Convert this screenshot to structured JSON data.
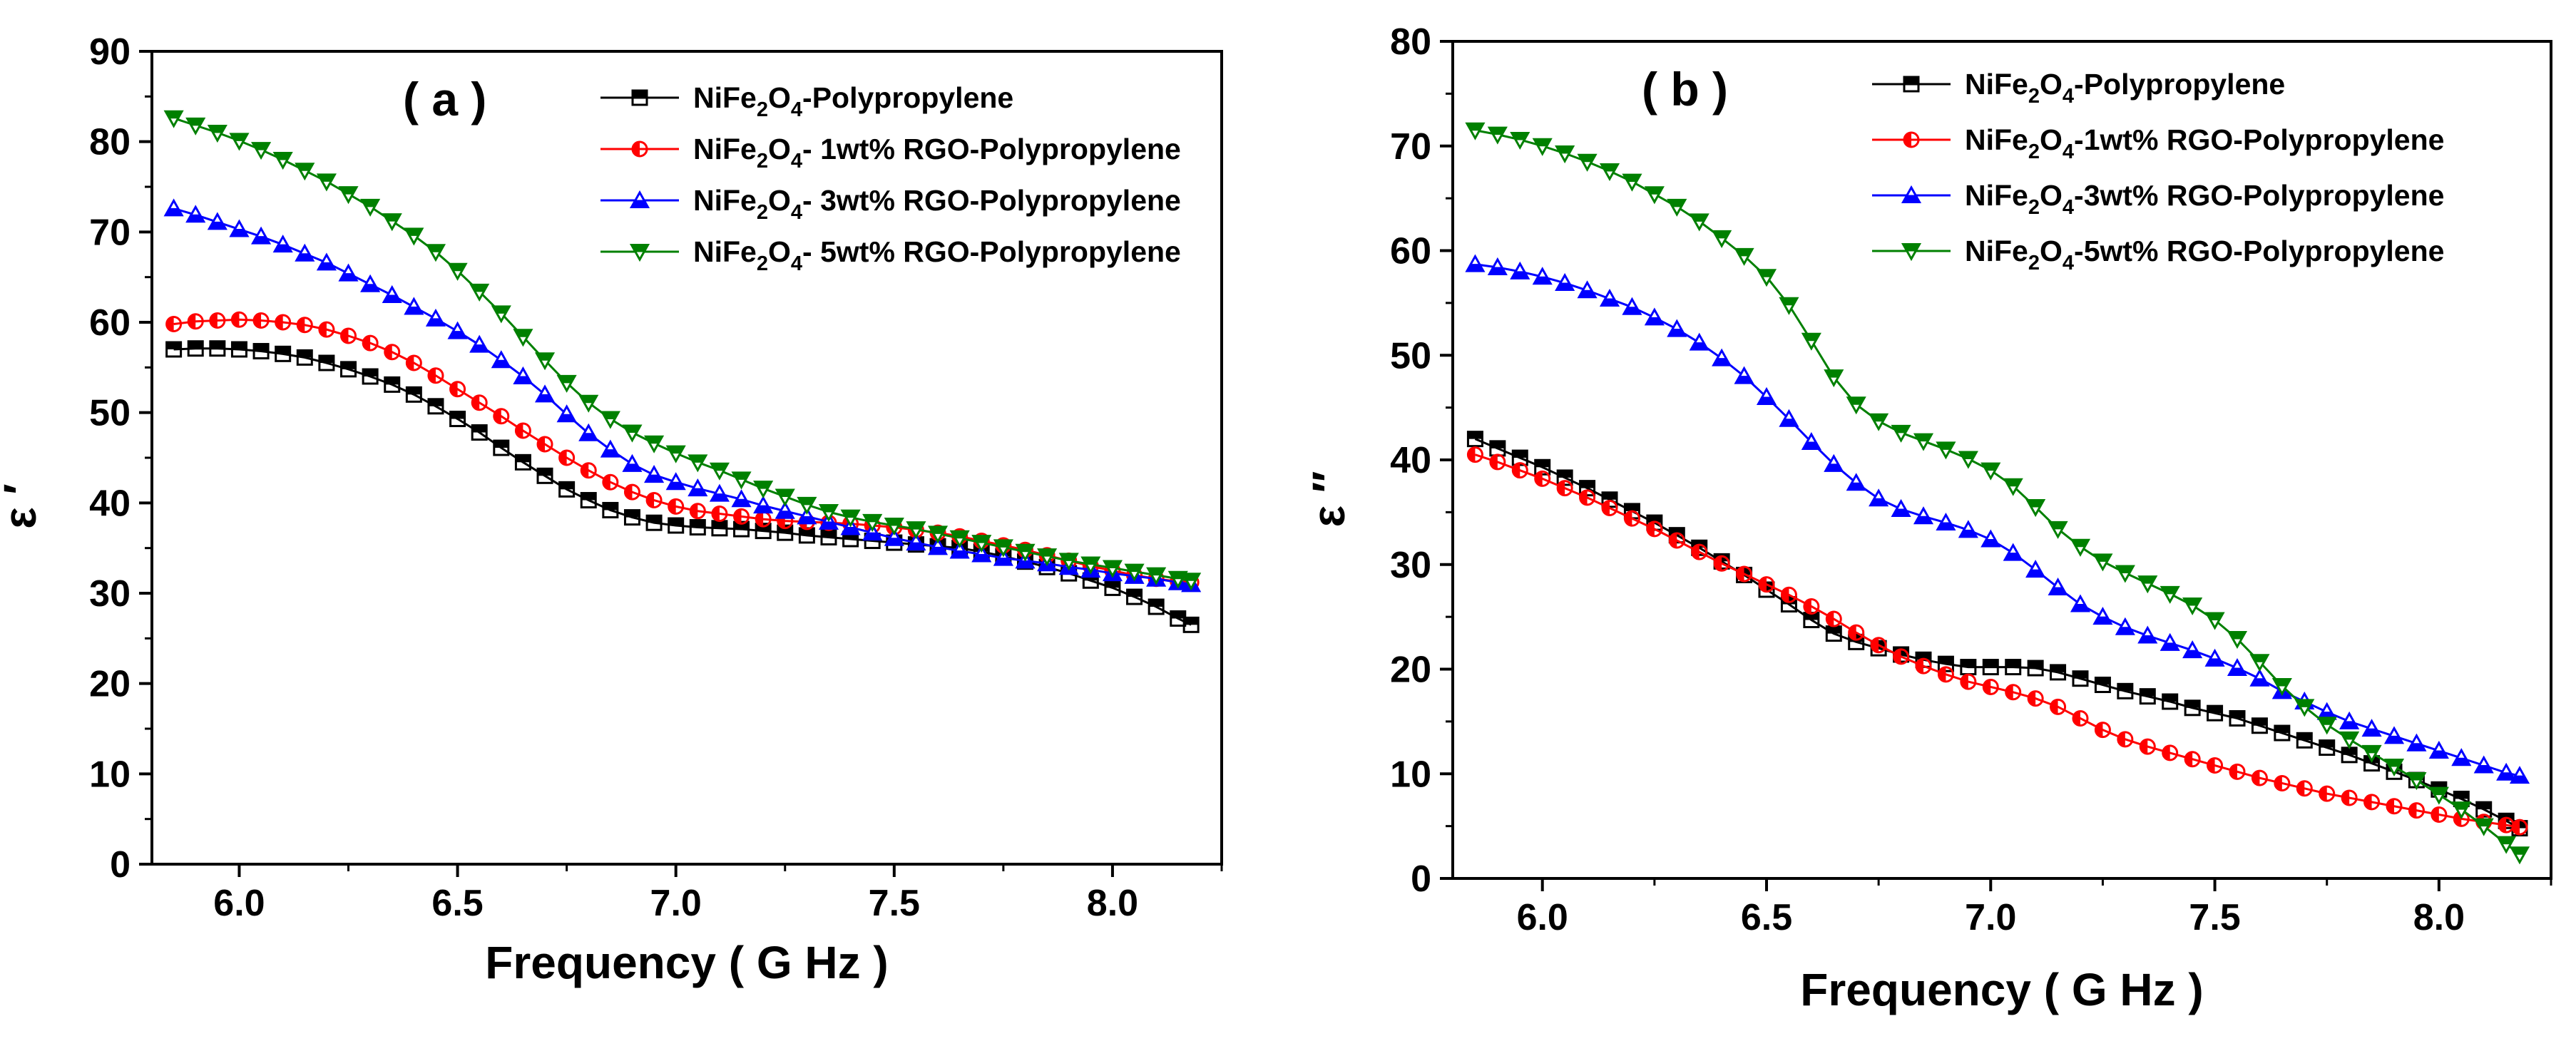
{
  "chart_data": [
    {
      "type": "scatter",
      "panel": "( a )",
      "title": "",
      "xlabel": "Frequency ( G Hz )",
      "ylabel": "ε ′",
      "xlim": [
        5.8,
        8.25
      ],
      "ylim": [
        0,
        90
      ],
      "xticks": [
        6.0,
        6.5,
        7.0,
        7.5,
        8.0
      ],
      "xtick_labels": [
        "6.0",
        "6.5",
        "7.0",
        "7.5",
        "8.0"
      ],
      "yticks": [
        0,
        10,
        20,
        30,
        40,
        50,
        60,
        70,
        80,
        90
      ],
      "ytick_labels": [
        "0",
        "10",
        "20",
        "30",
        "40",
        "50",
        "60",
        "70",
        "80",
        "90"
      ],
      "grid": false,
      "legend_position": "top-right",
      "series": [
        {
          "name": "NiFe2O4-Polypropylene",
          "label_parts": [
            [
              "NiFe",
              false
            ],
            [
              "2",
              true
            ],
            [
              "O",
              false
            ],
            [
              "4",
              true
            ],
            [
              "-Polypropylene",
              false
            ]
          ],
          "marker": "square",
          "color": "#000000",
          "x": [
            5.85,
            5.9,
            5.95,
            6.0,
            6.05,
            6.1,
            6.15,
            6.2,
            6.25,
            6.3,
            6.35,
            6.4,
            6.45,
            6.5,
            6.55,
            6.6,
            6.65,
            6.7,
            6.75,
            6.8,
            6.85,
            6.9,
            6.95,
            7.0,
            7.05,
            7.1,
            7.15,
            7.2,
            7.25,
            7.3,
            7.35,
            7.4,
            7.45,
            7.5,
            7.55,
            7.6,
            7.65,
            7.7,
            7.75,
            7.8,
            7.85,
            7.9,
            7.95,
            8.0,
            8.05,
            8.1,
            8.15,
            8.18
          ],
          "y": [
            57,
            57.1,
            57.1,
            57,
            56.8,
            56.5,
            56.1,
            55.5,
            54.8,
            54,
            53.1,
            52,
            50.7,
            49.3,
            47.8,
            46.1,
            44.5,
            43,
            41.5,
            40.3,
            39.2,
            38.4,
            37.8,
            37.5,
            37.3,
            37.2,
            37.1,
            36.9,
            36.7,
            36.4,
            36.2,
            36,
            35.8,
            35.6,
            35.4,
            35.2,
            35,
            34.6,
            34.1,
            33.5,
            32.9,
            32.2,
            31.4,
            30.6,
            29.6,
            28.5,
            27.2,
            26.5
          ]
        },
        {
          "name": "NiFe2O4- 1wt% RGO-Polypropylene",
          "label_parts": [
            [
              "NiFe",
              false
            ],
            [
              "2",
              true
            ],
            [
              "O",
              false
            ],
            [
              "4",
              true
            ],
            [
              "- 1wt% RGO-Polypropylene",
              false
            ]
          ],
          "marker": "half-circle",
          "color": "#ff0000",
          "x": [
            5.85,
            5.9,
            5.95,
            6.0,
            6.05,
            6.1,
            6.15,
            6.2,
            6.25,
            6.3,
            6.35,
            6.4,
            6.45,
            6.5,
            6.55,
            6.6,
            6.65,
            6.7,
            6.75,
            6.8,
            6.85,
            6.9,
            6.95,
            7.0,
            7.05,
            7.1,
            7.15,
            7.2,
            7.25,
            7.3,
            7.35,
            7.4,
            7.45,
            7.5,
            7.55,
            7.6,
            7.65,
            7.7,
            7.75,
            7.8,
            7.85,
            7.9,
            7.95,
            8.0,
            8.05,
            8.1,
            8.15,
            8.18
          ],
          "y": [
            59.8,
            60.1,
            60.2,
            60.3,
            60.2,
            60,
            59.7,
            59.2,
            58.5,
            57.7,
            56.7,
            55.5,
            54.1,
            52.6,
            51.1,
            49.6,
            48,
            46.5,
            45,
            43.6,
            42.3,
            41.2,
            40.3,
            39.6,
            39.1,
            38.8,
            38.5,
            38.2,
            38,
            37.9,
            37.8,
            37.7,
            37.5,
            37.3,
            37,
            36.7,
            36.3,
            35.8,
            35.3,
            34.8,
            34.2,
            33.6,
            33,
            32.5,
            32,
            31.6,
            31.3,
            31.2
          ]
        },
        {
          "name": "NiFe2O4- 3wt% RGO-Polypropylene",
          "label_parts": [
            [
              "NiFe",
              false
            ],
            [
              "2",
              true
            ],
            [
              "O",
              false
            ],
            [
              "4",
              true
            ],
            [
              "- 3wt% RGO-Polypropylene",
              false
            ]
          ],
          "marker": "triangle-up",
          "color": "#0000ff",
          "x": [
            5.85,
            5.9,
            5.95,
            6.0,
            6.05,
            6.1,
            6.15,
            6.2,
            6.25,
            6.3,
            6.35,
            6.4,
            6.45,
            6.5,
            6.55,
            6.6,
            6.65,
            6.7,
            6.75,
            6.8,
            6.85,
            6.9,
            6.95,
            7.0,
            7.05,
            7.1,
            7.15,
            7.2,
            7.25,
            7.3,
            7.35,
            7.4,
            7.45,
            7.5,
            7.55,
            7.6,
            7.65,
            7.7,
            7.75,
            7.8,
            7.85,
            7.9,
            7.95,
            8.0,
            8.05,
            8.1,
            8.15,
            8.18
          ],
          "y": [
            72.6,
            71.9,
            71.1,
            70.3,
            69.5,
            68.6,
            67.6,
            66.6,
            65.4,
            64.2,
            63,
            61.7,
            60.4,
            59,
            57.5,
            55.8,
            54,
            52,
            49.8,
            47.7,
            45.9,
            44.3,
            43.1,
            42.3,
            41.6,
            41,
            40.4,
            39.7,
            39.1,
            38.5,
            37.9,
            37.3,
            36.7,
            36.1,
            35.6,
            35.1,
            34.7,
            34.3,
            33.9,
            33.6,
            33.3,
            32.9,
            32.6,
            32.2,
            31.9,
            31.6,
            31.2,
            31
          ]
        },
        {
          "name": "NiFe2O4- 5wt% RGO-Polypropylene",
          "label_parts": [
            [
              "NiFe",
              false
            ],
            [
              "2",
              true
            ],
            [
              "O",
              false
            ],
            [
              "4",
              true
            ],
            [
              "- 5wt% RGO-Polypropylene",
              false
            ]
          ],
          "marker": "triangle-down",
          "color": "#008000",
          "x": [
            5.85,
            5.9,
            5.95,
            6.0,
            6.05,
            6.1,
            6.15,
            6.2,
            6.25,
            6.3,
            6.35,
            6.4,
            6.45,
            6.5,
            6.55,
            6.6,
            6.65,
            6.7,
            6.75,
            6.8,
            6.85,
            6.9,
            6.95,
            7.0,
            7.05,
            7.1,
            7.15,
            7.2,
            7.25,
            7.3,
            7.35,
            7.4,
            7.45,
            7.5,
            7.55,
            7.6,
            7.65,
            7.7,
            7.75,
            7.8,
            7.85,
            7.9,
            7.95,
            8.0,
            8.05,
            8.1,
            8.15,
            8.18
          ],
          "y": [
            82.6,
            81.8,
            81,
            80.1,
            79.1,
            78,
            76.8,
            75.6,
            74.2,
            72.8,
            71.2,
            69.6,
            67.8,
            65.7,
            63.4,
            61,
            58.4,
            55.8,
            53.3,
            51.1,
            49.3,
            47.8,
            46.6,
            45.5,
            44.5,
            43.6,
            42.6,
            41.6,
            40.7,
            39.8,
            39,
            38.4,
            37.9,
            37.5,
            37.1,
            36.6,
            36.1,
            35.6,
            35.1,
            34.6,
            34.1,
            33.6,
            33.2,
            32.8,
            32.4,
            32,
            31.6,
            31.4
          ]
        }
      ]
    },
    {
      "type": "scatter",
      "panel": "( b )",
      "title": "",
      "xlabel": "Frequency ( G Hz )",
      "ylabel": "ε ″",
      "xlim": [
        5.8,
        8.25
      ],
      "ylim": [
        0,
        80
      ],
      "xticks": [
        6.0,
        6.5,
        7.0,
        7.5,
        8.0
      ],
      "xtick_labels": [
        "6.0",
        "6.5",
        "7.0",
        "7.5",
        "8.0"
      ],
      "yticks": [
        0,
        10,
        20,
        30,
        40,
        50,
        60,
        70,
        80
      ],
      "ytick_labels": [
        "0",
        "10",
        "20",
        "30",
        "40",
        "50",
        "60",
        "70",
        "80"
      ],
      "grid": false,
      "legend_position": "top-right",
      "series": [
        {
          "name": "NiFe2O4-Polypropylene",
          "label_parts": [
            [
              "NiFe",
              false
            ],
            [
              "2",
              true
            ],
            [
              "O",
              false
            ],
            [
              "4",
              true
            ],
            [
              "-Polypropylene",
              false
            ]
          ],
          "marker": "square",
          "color": "#000000",
          "x": [
            5.85,
            5.9,
            5.95,
            6.0,
            6.05,
            6.1,
            6.15,
            6.2,
            6.25,
            6.3,
            6.35,
            6.4,
            6.45,
            6.5,
            6.55,
            6.6,
            6.65,
            6.7,
            6.75,
            6.8,
            6.85,
            6.9,
            6.95,
            7.0,
            7.05,
            7.1,
            7.15,
            7.2,
            7.25,
            7.3,
            7.35,
            7.4,
            7.45,
            7.5,
            7.55,
            7.6,
            7.65,
            7.7,
            7.75,
            7.8,
            7.85,
            7.9,
            7.95,
            8.0,
            8.05,
            8.1,
            8.15,
            8.18
          ],
          "y": [
            42,
            41.1,
            40.2,
            39.3,
            38.3,
            37.3,
            36.2,
            35.1,
            34,
            32.8,
            31.6,
            30.3,
            29,
            27.6,
            26.2,
            24.7,
            23.4,
            22.6,
            22,
            21.4,
            20.9,
            20.5,
            20.2,
            20.2,
            20.2,
            20.1,
            19.7,
            19.1,
            18.5,
            17.9,
            17.4,
            16.9,
            16.3,
            15.8,
            15.3,
            14.6,
            13.9,
            13.2,
            12.5,
            11.8,
            11,
            10.2,
            9.4,
            8.5,
            7.6,
            6.6,
            5.5,
            4.8
          ]
        },
        {
          "name": "NiFe2O4-1wt% RGO-Polypropylene",
          "label_parts": [
            [
              "NiFe",
              false
            ],
            [
              "2",
              true
            ],
            [
              "O",
              false
            ],
            [
              "4",
              true
            ],
            [
              "-1wt% RGO-Polypropylene",
              false
            ]
          ],
          "marker": "half-circle",
          "color": "#ff0000",
          "x": [
            5.85,
            5.9,
            5.95,
            6.0,
            6.05,
            6.1,
            6.15,
            6.2,
            6.25,
            6.3,
            6.35,
            6.4,
            6.45,
            6.5,
            6.55,
            6.6,
            6.65,
            6.7,
            6.75,
            6.8,
            6.85,
            6.9,
            6.95,
            7.0,
            7.05,
            7.1,
            7.15,
            7.2,
            7.25,
            7.3,
            7.35,
            7.4,
            7.45,
            7.5,
            7.55,
            7.6,
            7.65,
            7.7,
            7.75,
            7.8,
            7.85,
            7.9,
            7.95,
            8.0,
            8.05,
            8.1,
            8.15,
            8.18
          ],
          "y": [
            40.5,
            39.8,
            39,
            38.2,
            37.3,
            36.4,
            35.4,
            34.4,
            33.4,
            32.3,
            31.2,
            30.1,
            29.1,
            28.1,
            27.1,
            26,
            24.8,
            23.5,
            22.3,
            21.2,
            20.3,
            19.5,
            18.8,
            18.3,
            17.8,
            17.2,
            16.4,
            15.3,
            14.2,
            13.3,
            12.6,
            12,
            11.4,
            10.8,
            10.2,
            9.6,
            9.1,
            8.6,
            8.1,
            7.7,
            7.3,
            6.9,
            6.5,
            6.1,
            5.7,
            5.4,
            5.1,
            4.9
          ]
        },
        {
          "name": "NiFe2O4-3wt% RGO-Polypropylene",
          "label_parts": [
            [
              "NiFe",
              false
            ],
            [
              "2",
              true
            ],
            [
              "O",
              false
            ],
            [
              "4",
              true
            ],
            [
              "-3wt% RGO-Polypropylene",
              false
            ]
          ],
          "marker": "triangle-up",
          "color": "#0000ff",
          "x": [
            5.85,
            5.9,
            5.95,
            6.0,
            6.05,
            6.1,
            6.15,
            6.2,
            6.25,
            6.3,
            6.35,
            6.4,
            6.45,
            6.5,
            6.55,
            6.6,
            6.65,
            6.7,
            6.75,
            6.8,
            6.85,
            6.9,
            6.95,
            7.0,
            7.05,
            7.1,
            7.15,
            7.2,
            7.25,
            7.3,
            7.35,
            7.4,
            7.45,
            7.5,
            7.55,
            7.6,
            7.65,
            7.7,
            7.75,
            7.8,
            7.85,
            7.9,
            7.95,
            8.0,
            8.05,
            8.1,
            8.15,
            8.18
          ],
          "y": [
            58.7,
            58.4,
            58,
            57.5,
            56.9,
            56.2,
            55.4,
            54.6,
            53.6,
            52.5,
            51.2,
            49.7,
            48,
            46,
            43.9,
            41.7,
            39.6,
            37.8,
            36.3,
            35.3,
            34.6,
            34,
            33.3,
            32.4,
            31.1,
            29.5,
            27.8,
            26.2,
            25,
            24,
            23.2,
            22.5,
            21.8,
            21,
            20.1,
            19.1,
            17.9,
            16.9,
            15.9,
            15,
            14.3,
            13.6,
            12.9,
            12.2,
            11.5,
            10.8,
            10.1,
            9.8
          ]
        },
        {
          "name": "NiFe2O4-5wt% RGO-Polypropylene",
          "label_parts": [
            [
              "NiFe",
              false
            ],
            [
              "2",
              true
            ],
            [
              "O",
              false
            ],
            [
              "4",
              true
            ],
            [
              "-5wt% RGO-Polypropylene",
              false
            ]
          ],
          "marker": "triangle-down",
          "color": "#008000",
          "x": [
            5.85,
            5.9,
            5.95,
            6.0,
            6.05,
            6.1,
            6.15,
            6.2,
            6.25,
            6.3,
            6.35,
            6.4,
            6.45,
            6.5,
            6.55,
            6.6,
            6.65,
            6.7,
            6.75,
            6.8,
            6.85,
            6.9,
            6.95,
            7.0,
            7.05,
            7.1,
            7.15,
            7.2,
            7.25,
            7.3,
            7.35,
            7.4,
            7.45,
            7.5,
            7.55,
            7.6,
            7.65,
            7.7,
            7.75,
            7.8,
            7.85,
            7.9,
            7.95,
            8.0,
            8.05,
            8.1,
            8.15,
            8.18
          ],
          "y": [
            71.5,
            71.1,
            70.6,
            70,
            69.3,
            68.5,
            67.6,
            66.6,
            65.4,
            64.2,
            62.8,
            61.2,
            59.5,
            57.5,
            54.8,
            51.4,
            47.9,
            45.3,
            43.7,
            42.6,
            41.8,
            41,
            40.1,
            39,
            37.5,
            35.5,
            33.4,
            31.7,
            30.3,
            29.2,
            28.2,
            27.2,
            26.1,
            24.7,
            22.9,
            20.7,
            18.4,
            16.4,
            14.7,
            13.3,
            12,
            10.7,
            9.4,
            8,
            6.6,
            5,
            3.3,
            2.3
          ]
        }
      ]
    }
  ]
}
